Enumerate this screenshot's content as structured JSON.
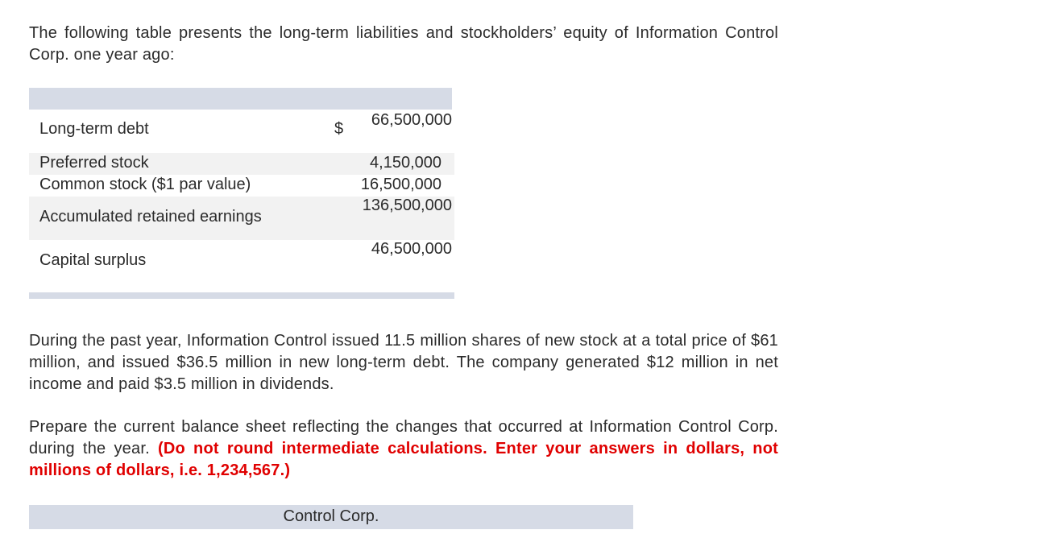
{
  "intro": "The following table presents the long-term liabilities and stockholders’ equity of Information Control Corp. one year ago:",
  "table": {
    "currency_symbol": "$",
    "rows": [
      {
        "label": "Long-term debt",
        "value": "66,500,000"
      },
      {
        "label": "Preferred stock",
        "value": "4,150,000"
      },
      {
        "label": "Common stock ($1 par value)",
        "value": "16,500,000"
      },
      {
        "label": "Accumulated retained earnings",
        "value": "136,500,000"
      },
      {
        "label": "Capital surplus",
        "value": "46,500,000"
      }
    ]
  },
  "during": "During the past year, Information Control issued 11.5 million shares of new stock at a total price of $61 million, and issued $36.5 million in new long-term debt. The company generated $12 million in net income and paid $3.5 million in dividends.",
  "prepare": {
    "text": "Prepare the current balance sheet reflecting the changes that occurred at Information Control Corp. during the year.",
    "instruction": "(Do not round intermediate calculations. Enter your answers in dollars, not millions of dollars, i.e. 1,234,567.)"
  },
  "bottom_table": {
    "header": "Control Corp."
  }
}
